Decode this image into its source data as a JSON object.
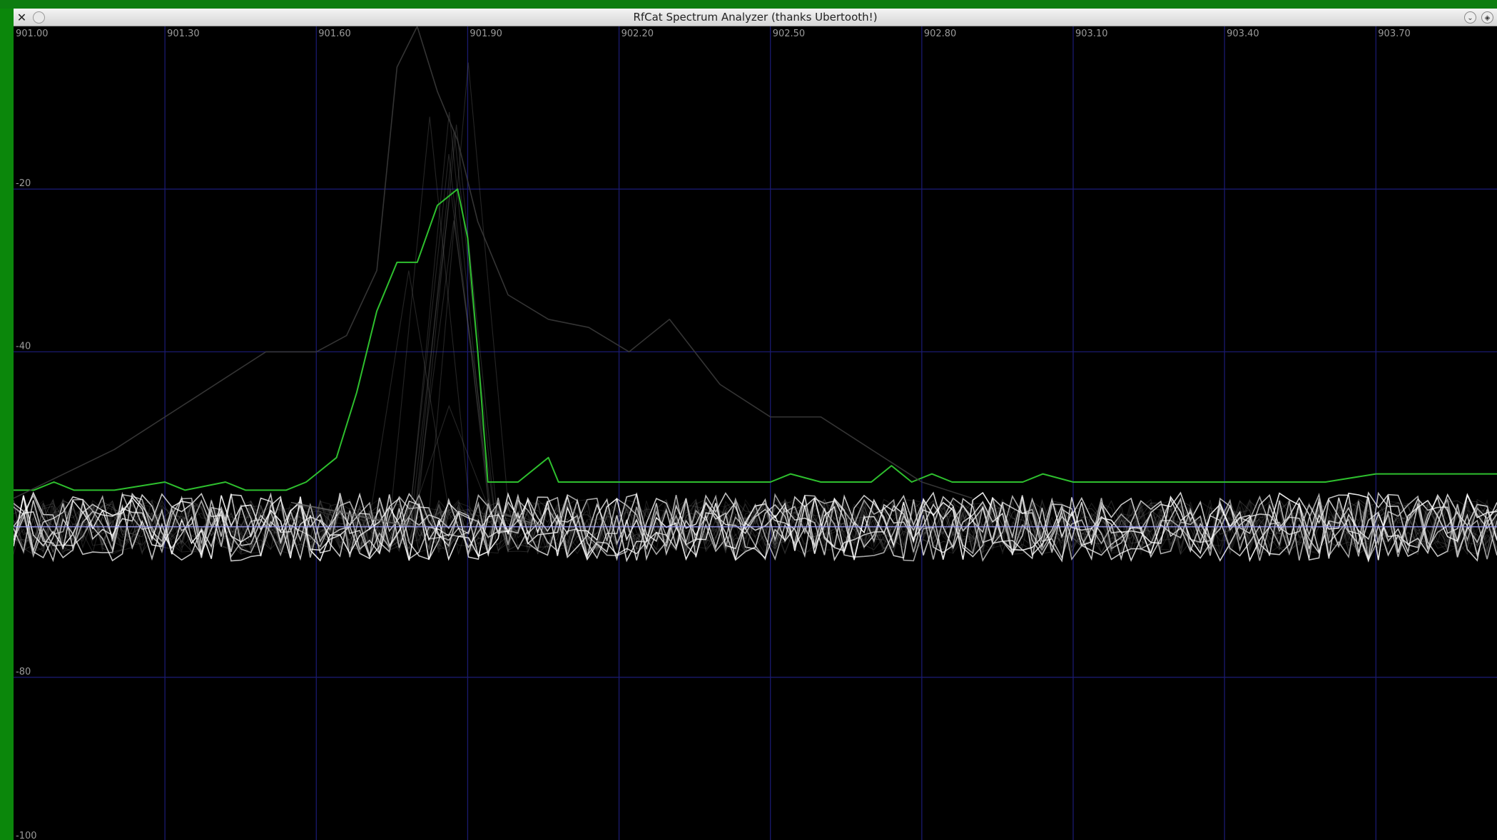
{
  "window": {
    "title": "RfCat Spectrum Analyzer (thanks Ubertooth!)",
    "close_icon": "close-x-icon",
    "sticky_icon": "sticky-circle-icon",
    "minimize_icon": "chevron-down-icon",
    "maximize_icon": "maximize-icon"
  },
  "colors": {
    "background": "#000000",
    "grid": "#1a1a6e",
    "max_hold": "#2ec02e",
    "trace": "#ffffff",
    "average": "#9f9fff",
    "labels": "#9a9a9a"
  },
  "chart_data": {
    "type": "line",
    "title": "",
    "xlabel": "",
    "ylabel": "",
    "xlim": [
      901.0,
      903.94
    ],
    "ylim": [
      -100,
      0
    ],
    "x_ticks": [
      "901.00",
      "901.30",
      "901.60",
      "901.90",
      "902.20",
      "902.50",
      "902.80",
      "903.10",
      "903.40",
      "903.70"
    ],
    "y_ticks": [
      "-20",
      "-40",
      "-80",
      "-100"
    ],
    "grid": true,
    "series": [
      {
        "style": "max-hold",
        "x": [
          901.0,
          901.04,
          901.08,
          901.12,
          901.2,
          901.3,
          901.34,
          901.42,
          901.46,
          901.54,
          901.58,
          901.6,
          901.64,
          901.68,
          901.72,
          901.76,
          901.8,
          901.84,
          901.88,
          901.9,
          901.92,
          901.94,
          902.0,
          902.06,
          902.08,
          902.1,
          902.2,
          902.3,
          902.4,
          902.5,
          902.54,
          902.6,
          902.7,
          902.74,
          902.78,
          902.82,
          902.86,
          902.9,
          902.96,
          903.0,
          903.04,
          903.1,
          903.2,
          903.3,
          903.4,
          903.5,
          903.6,
          903.7,
          903.8,
          903.94
        ],
        "values": [
          -57,
          -57,
          -56,
          -57,
          -57,
          -56,
          -57,
          -56,
          -57,
          -57,
          -56,
          -55,
          -53,
          -45,
          -35,
          -29,
          -29,
          -22,
          -20,
          -26,
          -40,
          -56,
          -56,
          -53,
          -56,
          -56,
          -56,
          -56,
          -56,
          -56,
          -55,
          -56,
          -56,
          -54,
          -56,
          -55,
          -56,
          -56,
          -56,
          -56,
          -55,
          -56,
          -56,
          -56,
          -56,
          -56,
          -56,
          -55,
          -55,
          -55
        ]
      },
      {
        "style": "average",
        "x": [
          901.0,
          903.94
        ],
        "values": [
          -61.5,
          -61.5
        ]
      },
      {
        "style": "burst-trace",
        "x": [
          901.0,
          901.2,
          901.35,
          901.5,
          901.6,
          901.66,
          901.72,
          901.76,
          901.8,
          901.84,
          901.88,
          901.92,
          901.98,
          902.06,
          902.14,
          902.22,
          902.3,
          902.4,
          902.5,
          902.6,
          902.7,
          902.8,
          902.9
        ],
        "values": [
          -58,
          -52,
          -46,
          -40,
          -40,
          -38,
          -30,
          -5,
          0,
          -8,
          -14,
          -24,
          -33,
          -36,
          -37,
          -40,
          -36,
          -44,
          -48,
          -48,
          -52,
          -56,
          -58
        ]
      }
    ]
  }
}
